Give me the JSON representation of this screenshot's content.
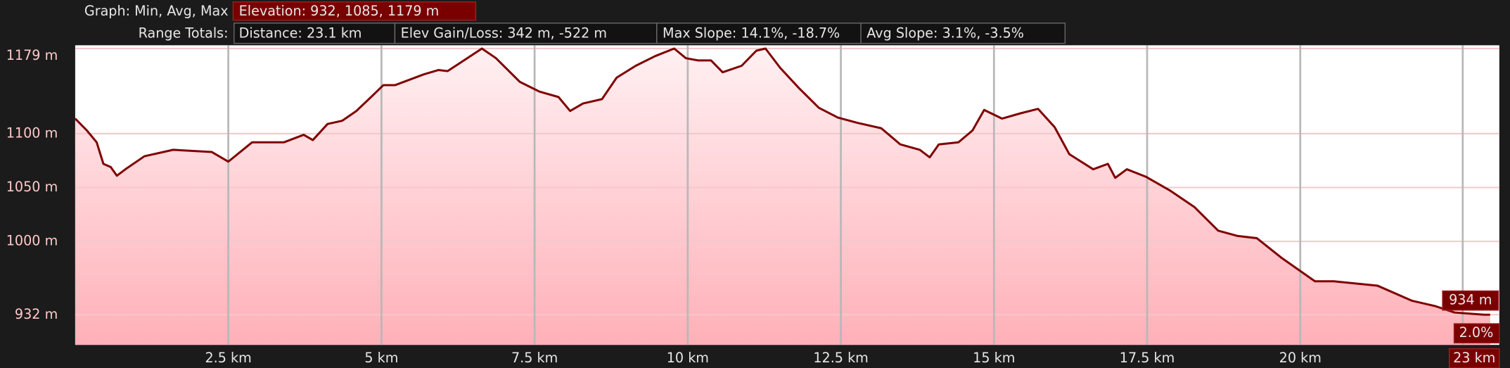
{
  "header": {
    "graph_label": "Graph: Min, Avg, Max",
    "elevation": "Elevation: 932, 1085, 1179 m",
    "range_label": "Range Totals:",
    "distance": "Distance: 23.1 km",
    "gain_loss": "Elev Gain/Loss: 342 m, -522 m",
    "max_slope": "Max Slope: 14.1%, -18.7%",
    "avg_slope": "Avg Slope: 3.1%, -3.5%"
  },
  "cursor": {
    "elevation": "934 m",
    "slope": "2.0%",
    "distance": "23 km"
  },
  "chart_data": {
    "type": "area",
    "color": "#800000",
    "grid": true,
    "x": [
      0,
      0.19,
      0.35,
      0.46,
      0.58,
      0.68,
      0.82,
      1.13,
      1.6,
      2.23,
      2.5,
      2.89,
      3.41,
      3.73,
      3.88,
      4.12,
      4.36,
      4.59,
      4.83,
      5.03,
      5.22,
      5.69,
      5.93,
      6.08,
      6.32,
      6.64,
      6.87,
      7.26,
      7.58,
      7.89,
      8.08,
      8.29,
      8.6,
      8.84,
      9.15,
      9.47,
      9.78,
      9.97,
      10.17,
      10.38,
      10.57,
      10.88,
      11.12,
      11.27,
      11.51,
      11.82,
      12.14,
      12.45,
      12.77,
      13.16,
      13.47,
      13.79,
      13.95,
      14.1,
      14.42,
      14.65,
      14.84,
      15.13,
      15.44,
      15.72,
      15.99,
      16.23,
      16.62,
      16.86,
      16.98,
      17.17,
      17.48,
      17.88,
      18.27,
      18.66,
      18.98,
      19.29,
      19.69,
      20.24,
      20.55,
      21.26,
      21.82,
      22.2,
      22.52,
      23.0,
      23.1
    ],
    "values": [
      1114,
      1103,
      1092,
      1072,
      1069,
      1061,
      1067,
      1079,
      1085,
      1083,
      1074,
      1092,
      1092,
      1099,
      1094,
      1109,
      1112,
      1121,
      1134,
      1145,
      1145,
      1155,
      1159,
      1158,
      1167,
      1179,
      1170,
      1148,
      1139,
      1134,
      1121,
      1128,
      1132,
      1152,
      1163,
      1172,
      1179,
      1170,
      1168,
      1168,
      1157,
      1163,
      1177,
      1179,
      1161,
      1142,
      1124,
      1115,
      1110,
      1105,
      1090,
      1085,
      1078,
      1090,
      1092,
      1103,
      1122,
      1114,
      1119,
      1123,
      1106,
      1081,
      1067,
      1072,
      1059,
      1067,
      1060,
      1047,
      1032,
      1010,
      1005,
      1003,
      985,
      963,
      963,
      959,
      945,
      940,
      934,
      932,
      932
    ],
    "xlim": [
      0,
      23.25
    ],
    "ylim": [
      904,
      1182
    ],
    "xticks": [
      {
        "value": 2.5,
        "label": "2.5 km"
      },
      {
        "value": 5,
        "label": "5 km"
      },
      {
        "value": 7.5,
        "label": "7.5 km"
      },
      {
        "value": 10,
        "label": "10 km"
      },
      {
        "value": 12.5,
        "label": "12.5 km"
      },
      {
        "value": 15,
        "label": "15 km"
      },
      {
        "value": 17.5,
        "label": "17.5 km"
      },
      {
        "value": 20,
        "label": "20 km"
      }
    ],
    "yticks": [
      {
        "value": 932,
        "label": "932 m"
      },
      {
        "value": 1000,
        "label": "1000 m"
      },
      {
        "value": 1050,
        "label": "1050 m"
      },
      {
        "value": 1100,
        "label": "1100 m"
      },
      {
        "value": 1179,
        "label": "1179 m"
      }
    ]
  }
}
